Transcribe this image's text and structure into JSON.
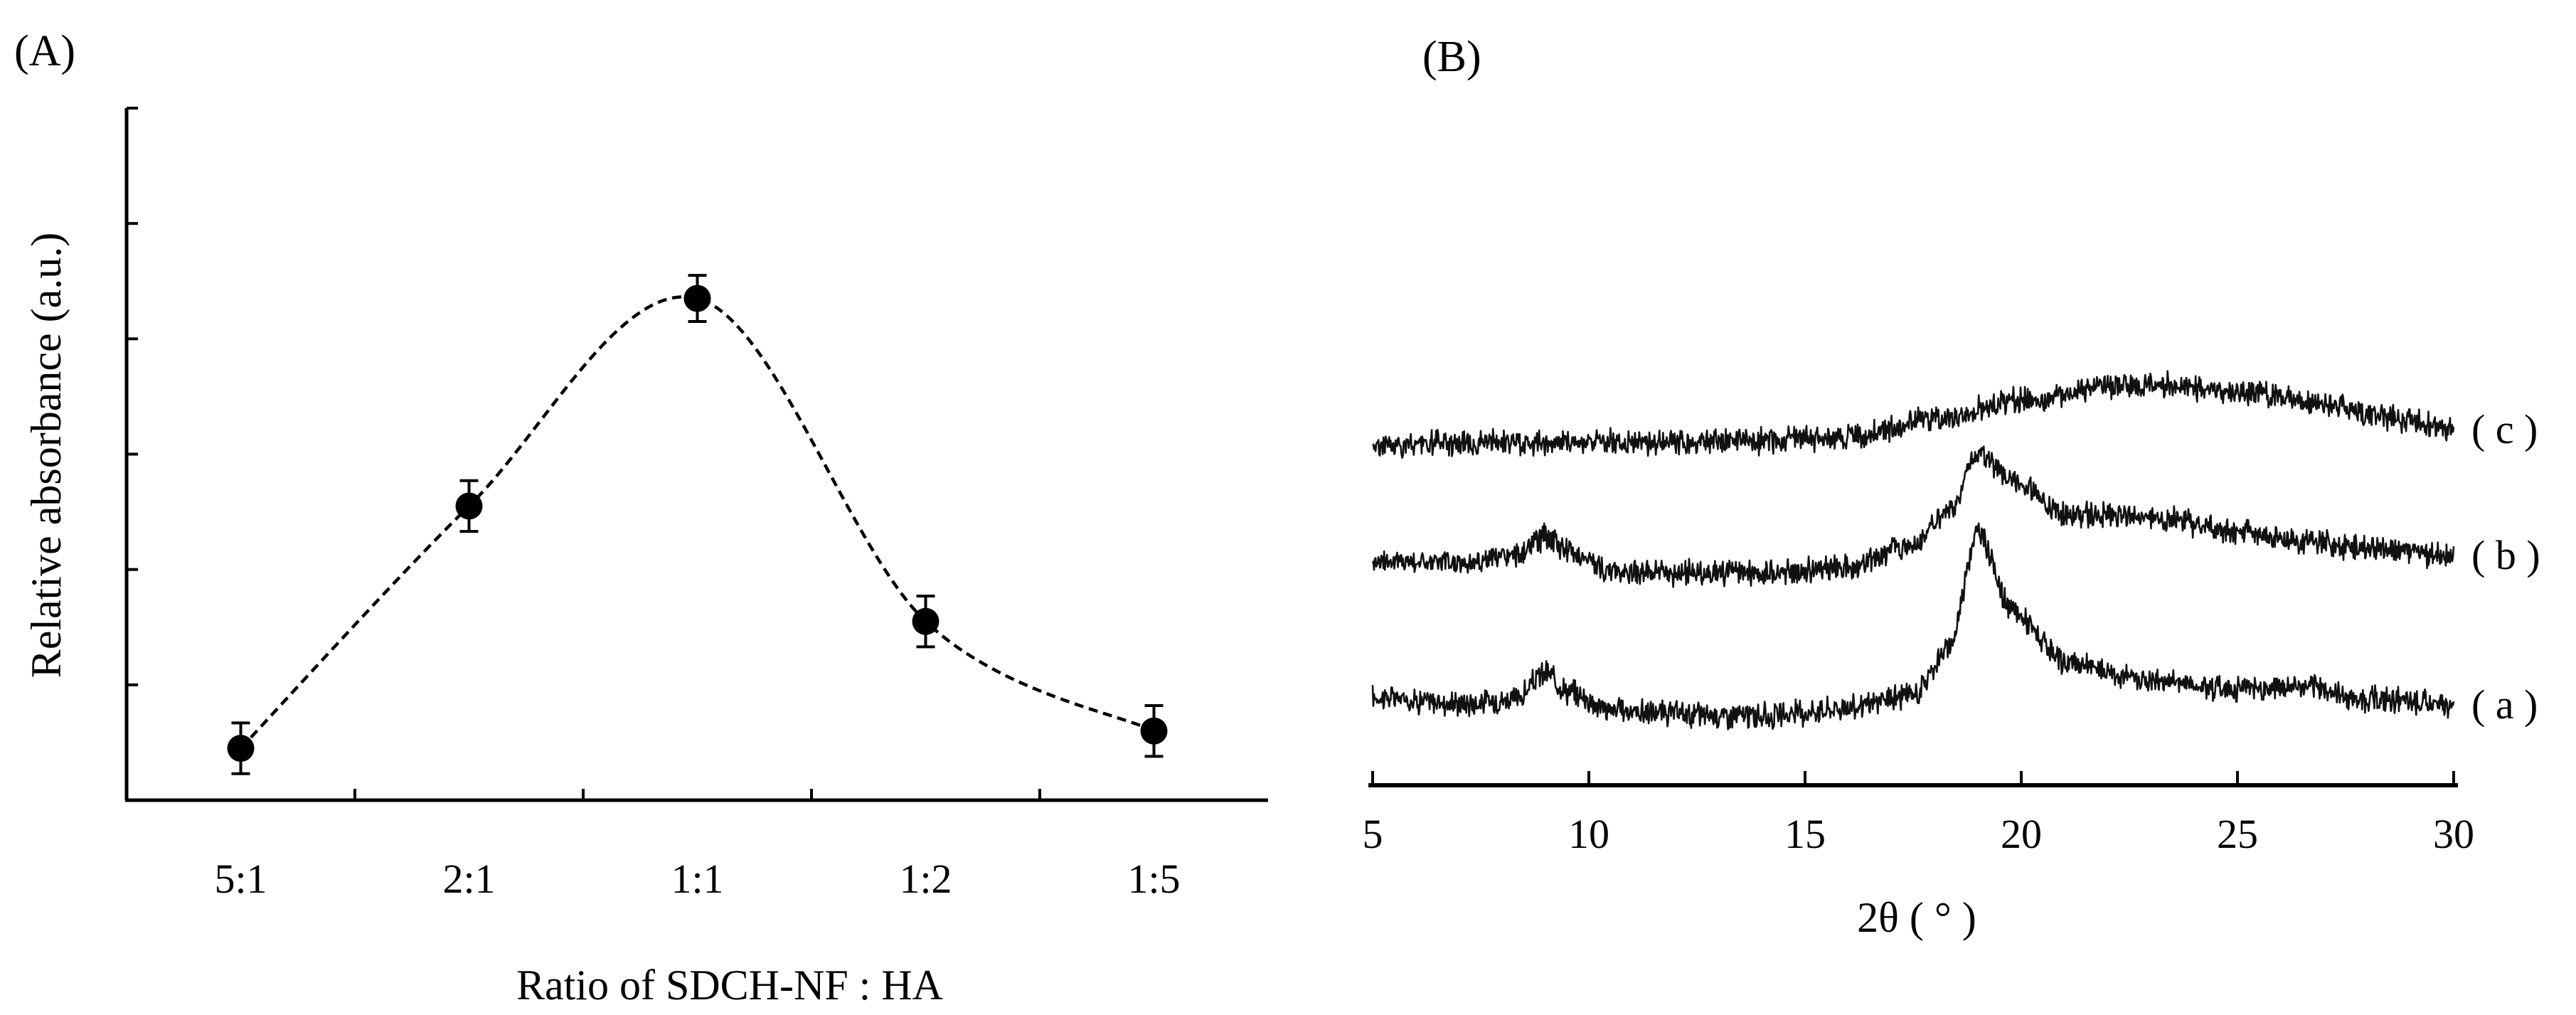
{
  "panels": {
    "a": {
      "label": "(A)"
    },
    "b": {
      "label": "(B)"
    }
  },
  "chart_data": [
    {
      "type": "line",
      "panel": "(A)",
      "title": "",
      "xlabel": "Ratio of SDCH-NF : HA",
      "ylabel": "Relative absorbance (a.u.)",
      "categories": [
        "5:1",
        "2:1",
        "1:1",
        "1:2",
        "1:5"
      ],
      "ylim": [
        0,
        6
      ],
      "y_tick_labels_shown": false,
      "grid": false,
      "legend": "none",
      "line_style": "dashed smoothed",
      "marker": "filled circle",
      "series": [
        {
          "values": [
            0.45,
            2.55,
            4.35,
            1.55,
            0.6
          ],
          "errors": [
            0.22,
            0.22,
            0.2,
            0.22,
            0.22
          ]
        }
      ]
    },
    {
      "type": "line",
      "panel": "(B)",
      "title": "",
      "xlabel": "2θ ( ° )",
      "ylabel": "",
      "x_ticks": [
        5,
        10,
        15,
        20,
        25,
        30
      ],
      "xlim": [
        5,
        30
      ],
      "y_axis_shown": false,
      "grid": false,
      "legend": "none",
      "line_style": "noisy solid",
      "series": [
        {
          "name": "( a )",
          "offset": 0,
          "points": [
            [
              5,
              0.5
            ],
            [
              7,
              0.35
            ],
            [
              8.3,
              0.45
            ],
            [
              9.0,
              1.05
            ],
            [
              9.6,
              0.6
            ],
            [
              10.5,
              0.2
            ],
            [
              12,
              0.1
            ],
            [
              14,
              0.05
            ],
            [
              16,
              0.25
            ],
            [
              17.5,
              0.55
            ],
            [
              18.3,
              1.6
            ],
            [
              19.0,
              4.35
            ],
            [
              19.8,
              2.5
            ],
            [
              21,
              1.3
            ],
            [
              23,
              0.9
            ],
            [
              25,
              0.7
            ],
            [
              26.5,
              0.75
            ],
            [
              28,
              0.45
            ],
            [
              30,
              0.3
            ]
          ]
        },
        {
          "name": "( b )",
          "offset": 3.2,
          "points": [
            [
              5,
              0.5
            ],
            [
              7,
              0.45
            ],
            [
              8.3,
              0.6
            ],
            [
              9.0,
              1.05
            ],
            [
              9.6,
              0.7
            ],
            [
              10.5,
              0.25
            ],
            [
              12,
              0.2
            ],
            [
              14,
              0.2
            ],
            [
              16,
              0.35
            ],
            [
              17.5,
              0.9
            ],
            [
              18.3,
              1.6
            ],
            [
              19.0,
              3.0
            ],
            [
              19.8,
              2.4
            ],
            [
              21,
              1.6
            ],
            [
              23,
              1.5
            ],
            [
              25,
              1.2
            ],
            [
              26.5,
              0.95
            ],
            [
              28,
              0.8
            ],
            [
              30,
              0.6
            ]
          ]
        },
        {
          "name": "( c )",
          "offset": 6.4,
          "points": [
            [
              5,
              0.0
            ],
            [
              7,
              0.05
            ],
            [
              9,
              0.05
            ],
            [
              10,
              0.1
            ],
            [
              12,
              0.05
            ],
            [
              14,
              0.1
            ],
            [
              16,
              0.2
            ],
            [
              18,
              0.6
            ],
            [
              20,
              1.05
            ],
            [
              22,
              1.35
            ],
            [
              23.5,
              1.4
            ],
            [
              25,
              1.25
            ],
            [
              27,
              0.95
            ],
            [
              28.5,
              0.65
            ],
            [
              30,
              0.35
            ]
          ]
        }
      ]
    }
  ]
}
